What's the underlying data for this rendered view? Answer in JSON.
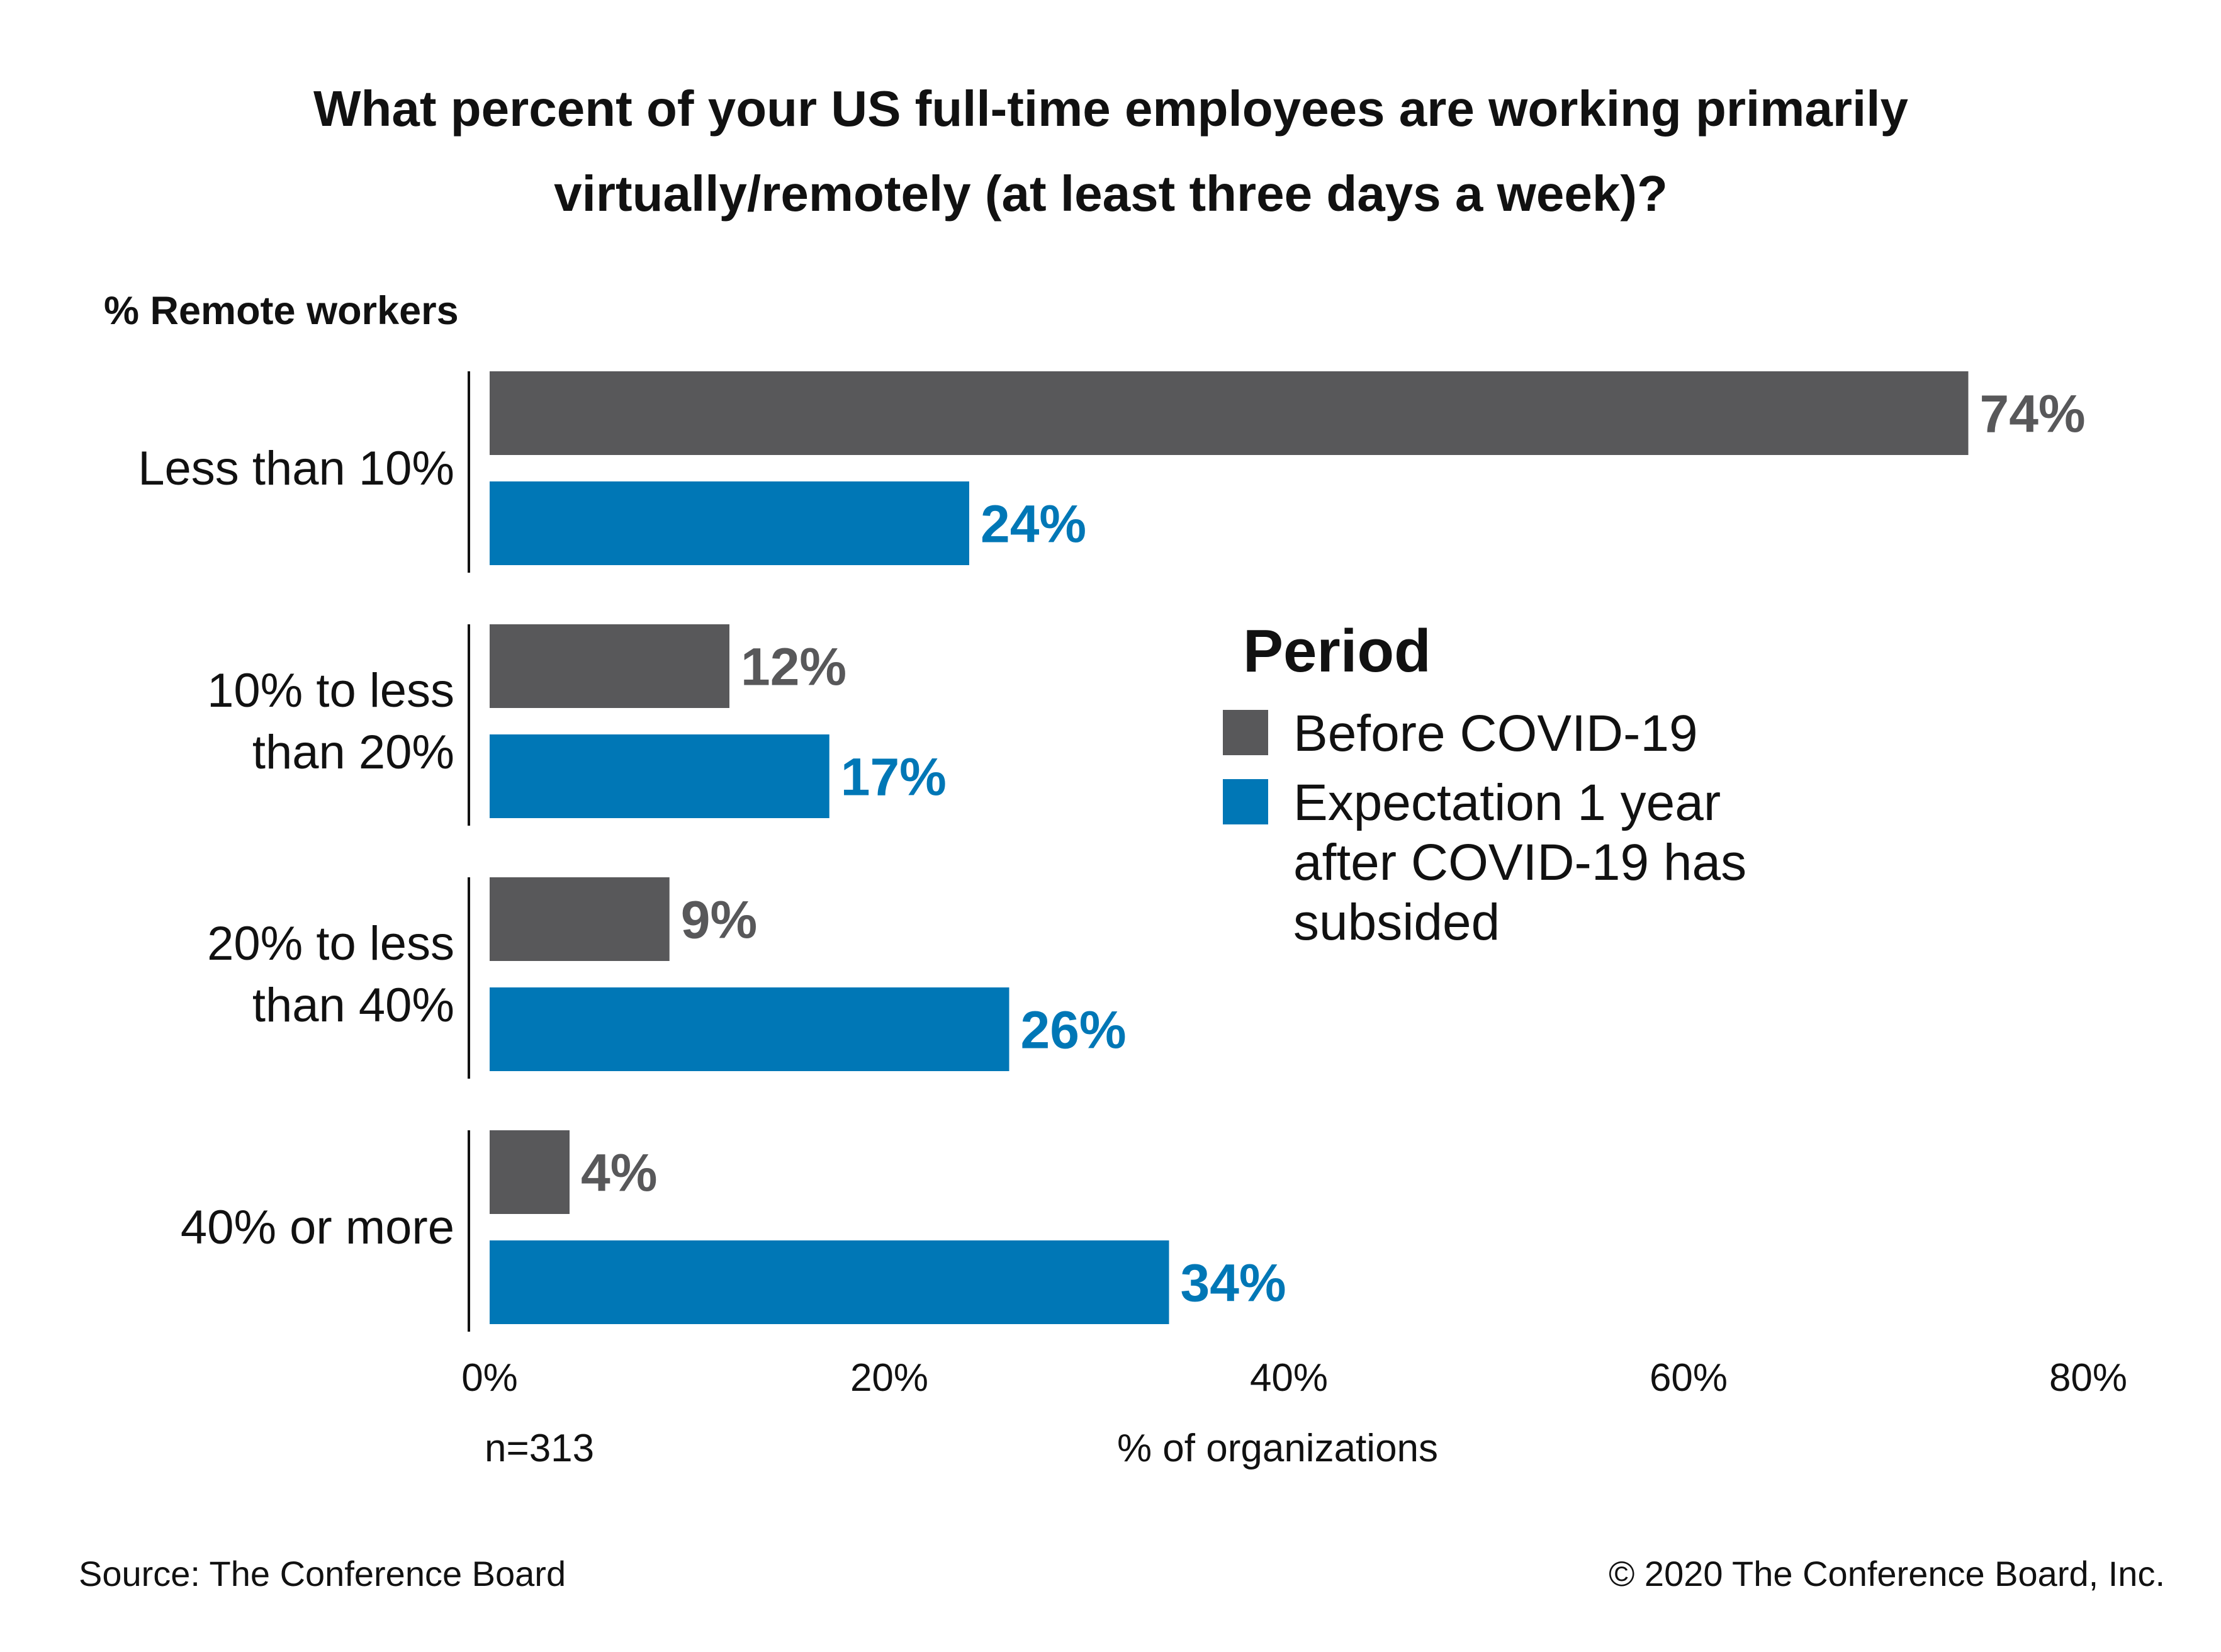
{
  "chart_data": {
    "type": "bar",
    "orientation": "horizontal",
    "title_lines": [
      "What percent of your US full-time employees are working primarily",
      "virtually/remotely (at least three days a week)?"
    ],
    "ylabel": "% Remote workers",
    "xlabel": "% of organizations",
    "sample_note": "n=313",
    "categories": [
      [
        "Less than 10%"
      ],
      [
        "10% to less",
        "than 20%"
      ],
      [
        "20% to less",
        "than 40%"
      ],
      [
        "40% or more"
      ]
    ],
    "series": [
      {
        "name": "Before COVID-19",
        "color": "#58585a",
        "values": [
          74,
          12,
          9,
          4
        ]
      },
      {
        "name": "Expectation 1 year after COVID-19 has subsided",
        "color": "#0077b6",
        "name_lines": [
          "Expectation 1 year",
          "after COVID-19 has",
          "subsided"
        ],
        "values": [
          24,
          17,
          26,
          34
        ]
      }
    ],
    "value_suffix": "%",
    "xlim": [
      0,
      80
    ],
    "xticks": [
      "0%",
      "20%",
      "40%",
      "60%",
      "80%"
    ],
    "grid": false,
    "legend": {
      "title": "Period",
      "placement": "right"
    }
  },
  "footer": {
    "source": "Source: The Conference Board",
    "copyright": "© 2020 The Conference Board, Inc."
  }
}
